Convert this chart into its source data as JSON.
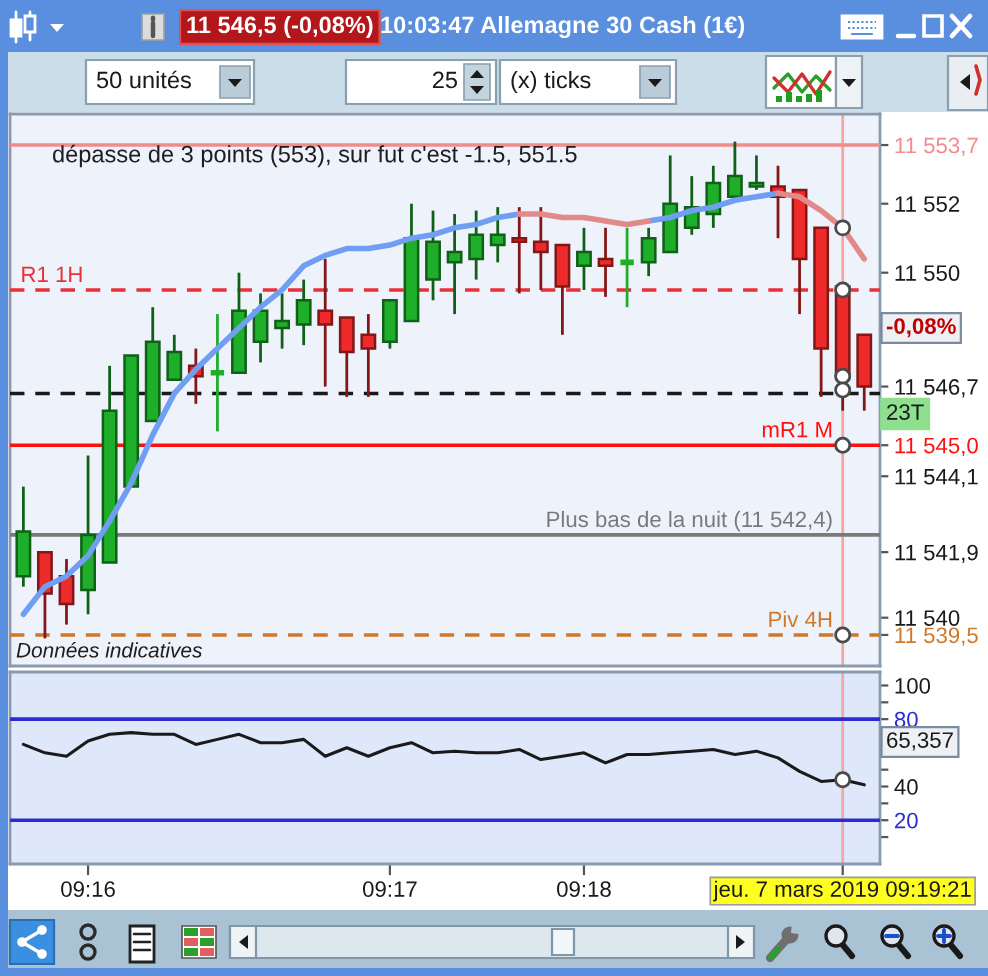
{
  "chart_data": [
    {
      "type": "candlestick",
      "title": "10:03:47 Allemagne 30 Cash (1€)",
      "categories": [
        null,
        null,
        null,
        "09:16",
        null,
        null,
        null,
        null,
        null,
        null,
        null,
        null,
        null,
        null,
        null,
        null,
        null,
        "09:17",
        null,
        null,
        null,
        null,
        null,
        null,
        null,
        null,
        "09:18",
        null,
        null,
        null,
        null,
        null,
        null,
        null,
        null,
        null,
        null,
        null,
        "jeu. 7 mars 2019 09:19:21",
        null
      ],
      "ohlc": [
        [
          11541.2,
          11543.8,
          11540.9,
          11542.5
        ],
        [
          11541.9,
          11541.9,
          11539.4,
          11540.7
        ],
        [
          11541.2,
          11541.7,
          11539.8,
          11540.4
        ],
        [
          11540.8,
          11544.7,
          11540.1,
          11542.4
        ],
        [
          11541.6,
          11547.3,
          11541.6,
          11546.0
        ],
        [
          11543.8,
          11547.6,
          11543.8,
          11547.6
        ],
        [
          11545.7,
          11549.0,
          11545.7,
          11548.0
        ],
        [
          11546.9,
          11548.2,
          11546.9,
          11547.7
        ],
        [
          11547.3,
          11547.8,
          11546.2,
          11547.0
        ],
        [
          11547.1,
          11548.8,
          11545.4,
          11547.1
        ],
        [
          11547.1,
          11550.0,
          11547.1,
          11548.9
        ],
        [
          11548.0,
          11549.4,
          11547.4,
          11548.9
        ],
        [
          11548.4,
          11549.4,
          11547.8,
          11548.6
        ],
        [
          11548.5,
          11549.8,
          11547.9,
          11549.2
        ],
        [
          11548.9,
          11550.4,
          11546.7,
          11548.5
        ],
        [
          11548.7,
          11548.7,
          11546.4,
          11547.7
        ],
        [
          11548.2,
          11548.8,
          11546.4,
          11547.8
        ],
        [
          11548.0,
          11549.2,
          11547.8,
          11549.2
        ],
        [
          11548.6,
          11552.0,
          11548.6,
          11551.0
        ],
        [
          11549.8,
          11551.8,
          11549.2,
          11550.9
        ],
        [
          11550.3,
          11551.7,
          11548.8,
          11550.6
        ],
        [
          11550.4,
          11551.8,
          11549.8,
          11551.1
        ],
        [
          11550.8,
          11551.9,
          11550.3,
          11551.1
        ],
        [
          11551.0,
          11551.9,
          11549.4,
          11550.9
        ],
        [
          11550.9,
          11551.9,
          11549.5,
          11550.6
        ],
        [
          11550.8,
          11550.8,
          11548.2,
          11549.6
        ],
        [
          11550.2,
          11551.3,
          11549.5,
          11550.6
        ],
        [
          11550.4,
          11551.3,
          11549.3,
          11550.2
        ],
        [
          11550.3,
          11551.3,
          11549.0,
          11550.3
        ],
        [
          11550.3,
          11551.3,
          11549.9,
          11551.0
        ],
        [
          11550.6,
          11553.4,
          11550.6,
          11552.0
        ],
        [
          11551.3,
          11552.8,
          11551.1,
          11551.9
        ],
        [
          11551.7,
          11553.1,
          11551.3,
          11552.6
        ],
        [
          11552.2,
          11553.8,
          11552.2,
          11552.8
        ],
        [
          11552.5,
          11553.4,
          11552.4,
          11552.6
        ],
        [
          11552.5,
          11553.1,
          11551.0,
          11552.2
        ],
        [
          11552.4,
          11552.4,
          11548.8,
          11550.4
        ],
        [
          11551.3,
          11551.3,
          11546.4,
          11547.8
        ],
        [
          11549.6,
          11549.6,
          11546.0,
          11547.0
        ],
        [
          11548.2,
          11548.2,
          11546.0,
          11546.7
        ]
      ],
      "colors": [
        "#1fae2a",
        "#ee2a2a",
        "#ee2a2a",
        "#1fae2a",
        "#1fae2a",
        "#1fae2a",
        "#1fae2a",
        "#1fae2a",
        "#ee2a2a",
        "#1fae2a",
        "#1fae2a",
        "#1fae2a",
        "#1fae2a",
        "#1fae2a",
        "#ee2a2a",
        "#ee2a2a",
        "#ee2a2a",
        "#1fae2a",
        "#1fae2a",
        "#1fae2a",
        "#1fae2a",
        "#1fae2a",
        "#1fae2a",
        "#ee2a2a",
        "#ee2a2a",
        "#ee2a2a",
        "#1fae2a",
        "#ee2a2a",
        "#1fae2a",
        "#1fae2a",
        "#1fae2a",
        "#1fae2a",
        "#1fae2a",
        "#1fae2a",
        "#1fae2a",
        "#ee2a2a",
        "#ee2a2a",
        "#ee2a2a",
        "#ee2a2a",
        "#ee2a2a"
      ],
      "series": [
        {
          "type": "line",
          "color": "#6f9ef2",
          "values": [
            11540.1,
            11540.9,
            11541.2,
            11541.8,
            11542.8,
            11543.9,
            11545.3,
            11546.5,
            11547.2,
            11547.8,
            11548.4,
            11549.0,
            11549.5,
            11550.2,
            11550.5,
            11550.7,
            11550.7,
            11550.8,
            11551.0,
            11551.1,
            11551.3,
            11551.4,
            11551.6,
            11551.7,
            null,
            null,
            null,
            null,
            null,
            11551.5,
            11551.6,
            11551.8,
            11551.9,
            11552.1,
            11552.2,
            11552.3,
            null,
            null,
            null,
            null
          ]
        },
        {
          "type": "line",
          "color": "#e28a8a",
          "values": [
            null,
            null,
            null,
            null,
            null,
            null,
            null,
            null,
            null,
            null,
            null,
            null,
            null,
            null,
            null,
            null,
            null,
            null,
            null,
            null,
            null,
            null,
            null,
            11551.7,
            11551.7,
            11551.6,
            11551.6,
            11551.5,
            11551.4,
            11551.5,
            null,
            null,
            null,
            null,
            null,
            11552.3,
            11552.2,
            11551.8,
            11551.3,
            11550.4
          ]
        },
        {
          "type": "scatter",
          "color": "#ffffff",
          "marker": "circle",
          "x": [
            "jeu. 7 mars 2019 09:19:21",
            "jeu. 7 mars 2019 09:19:21",
            "jeu. 7 mars 2019 09:19:21",
            "jeu. 7 mars 2019 09:19:21",
            "jeu. 7 mars 2019 09:19:21",
            "jeu. 7 mars 2019 09:19:21"
          ],
          "values": [
            11551.3,
            11549.5,
            11547.0,
            11546.6,
            11545.0,
            11539.5
          ]
        }
      ],
      "ylim": [
        11538.6,
        11554.6
      ],
      "yticks": [
        {
          "value": 11553.7,
          "label": "11 553,7"
        },
        {
          "value": 11552,
          "label": "11 552"
        },
        {
          "value": 11550,
          "label": "11 550"
        },
        {
          "value": 11546.7,
          "label": "11 546,7"
        },
        {
          "value": 11545.0,
          "label": "11 545,0"
        },
        {
          "value": 11544.1,
          "label": "11 544,1"
        },
        {
          "value": 11541.9,
          "label": "11 541,9"
        },
        {
          "value": 11540,
          "label": "11 540"
        },
        {
          "value": 11539.5,
          "label": "11 539,5"
        }
      ],
      "ref_lines": [
        {
          "axis": "y",
          "value": 11553.7,
          "color": "#f08c8c",
          "line_style": "solid"
        },
        {
          "axis": "y",
          "value": 11549.5,
          "label": "R1 1H",
          "color": "#e8303a",
          "line_style": "dashed"
        },
        {
          "axis": "y",
          "value": 11546.5,
          "color": "#1a1a1a",
          "line_style": "dashed"
        },
        {
          "axis": "y",
          "value": 11545.0,
          "label": "mR1 M",
          "color": "#ff1010",
          "line_style": "solid"
        },
        {
          "axis": "y",
          "value": 11542.4,
          "label": "Plus bas de la nuit (11 542,4)",
          "color": "#7a7a7a",
          "line_style": "solid"
        },
        {
          "axis": "y",
          "value": 11539.5,
          "label": "Piv 4H",
          "color": "#d0782a",
          "line_style": "dashed"
        },
        {
          "axis": "x",
          "value": "jeu. 7 mars 2019 09:19:21",
          "color": "#f2a6a6",
          "line_style": "solid"
        }
      ],
      "tick_labels": "y",
      "annotations": [
        "11 546,5 (-0,08%)",
        "dépasse de 3 points (553), sur fut c'est -1.5, 551.5",
        "Données indicatives",
        "-0,08%",
        "23T",
        "50 unités",
        "25",
        "(x) ticks"
      ]
    },
    {
      "type": "line",
      "categories": [
        null,
        null,
        null,
        "09:16",
        null,
        null,
        null,
        null,
        null,
        null,
        null,
        null,
        null,
        null,
        null,
        null,
        null,
        "09:17",
        null,
        null,
        null,
        null,
        null,
        null,
        null,
        null,
        "09:18",
        null,
        null,
        null,
        null,
        null,
        null,
        null,
        null,
        null,
        null,
        null,
        "jeu. 7 mars 2019 09:19:21",
        null
      ],
      "series": [
        {
          "type": "line",
          "color": "#1a1a1a",
          "values": [
            65,
            60,
            58,
            67,
            71,
            72,
            71,
            71,
            65,
            68,
            71,
            66,
            66,
            68,
            58,
            63,
            58,
            63,
            66,
            60,
            61,
            60,
            60,
            62,
            56,
            58,
            60,
            54,
            59,
            59,
            60,
            61,
            62,
            59,
            61,
            57,
            49,
            43,
            44,
            41
          ]
        },
        {
          "type": "scatter",
          "color": "#ffffff",
          "marker": "circle",
          "x": [
            "jeu. 7 mars 2019 09:19:21"
          ],
          "values": [
            44
          ]
        }
      ],
      "ylim": [
        -6,
        108
      ],
      "yticks": [
        {
          "value": 10,
          "label": null
        },
        20,
        {
          "value": 30,
          "label": null
        },
        40,
        {
          "value": 50,
          "label": null
        },
        80,
        {
          "value": 90,
          "label": null
        },
        100
      ],
      "ref_lines": [
        {
          "axis": "y",
          "value": 80,
          "color": "#2b2bd0",
          "line_style": "solid"
        },
        {
          "axis": "y",
          "value": 20,
          "color": "#2b2bd0",
          "line_style": "solid"
        },
        {
          "axis": "x",
          "value": "jeu. 7 mars 2019 09:19:21",
          "color": "#f2a6a6",
          "line_style": "solid"
        }
      ],
      "annotations": [
        "65,357"
      ]
    }
  ]
}
